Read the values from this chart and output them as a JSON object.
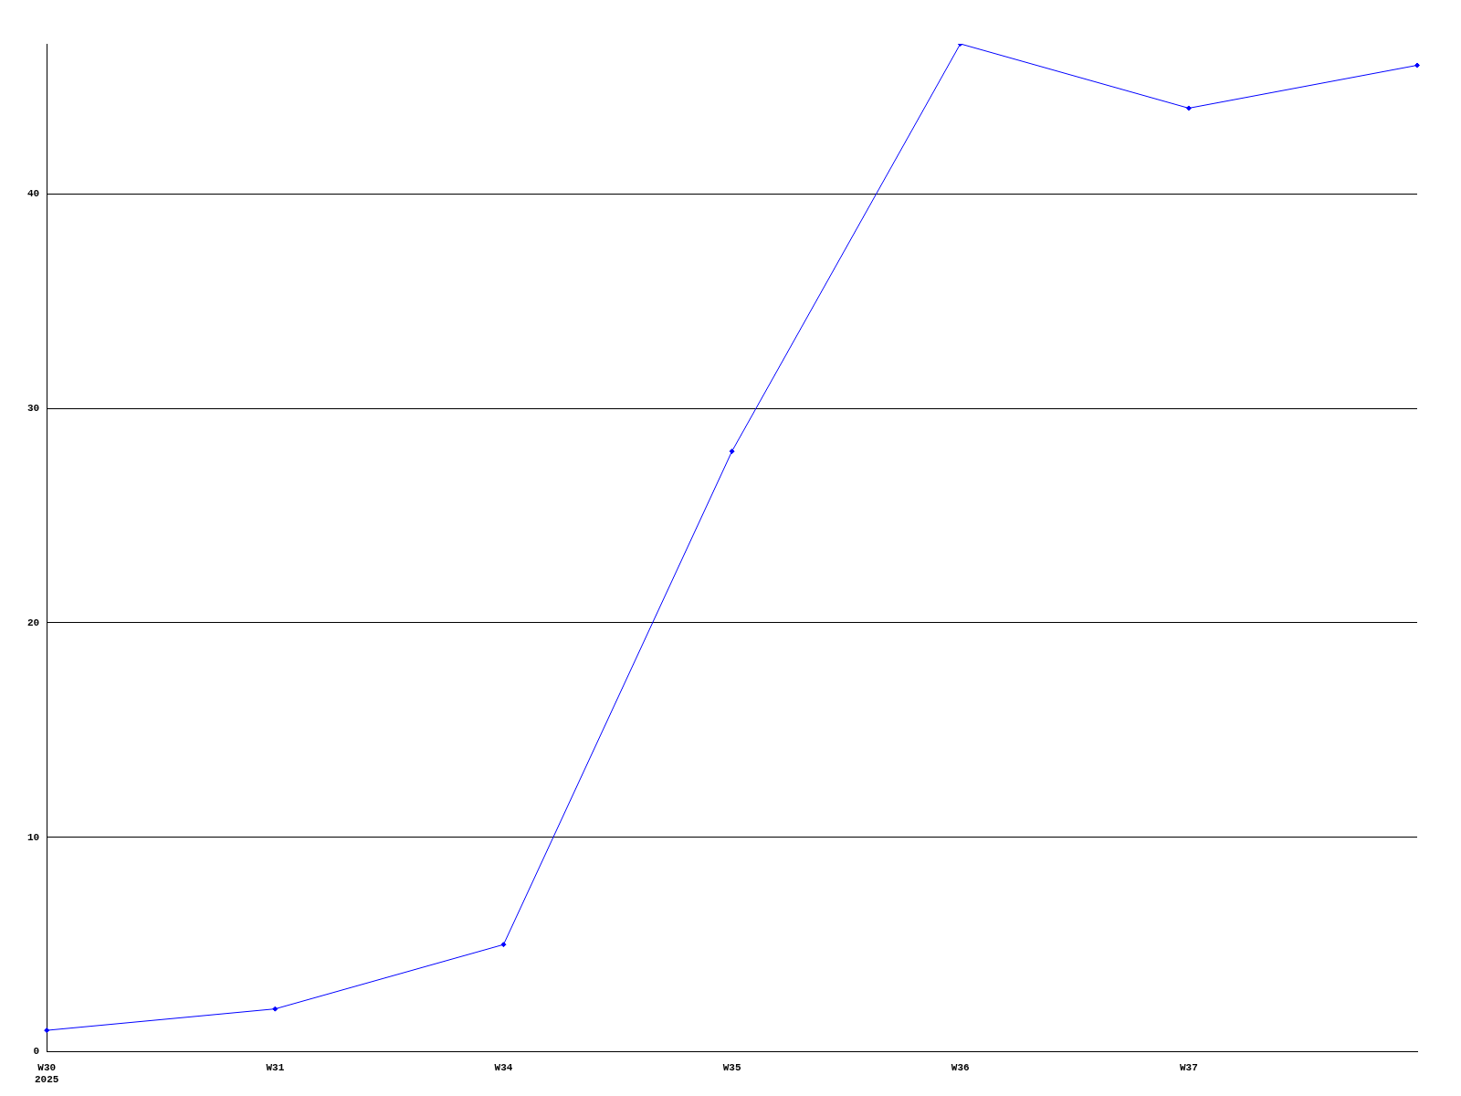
{
  "chart_data": {
    "type": "line",
    "categories": [
      "W30\n2025",
      "W31",
      "W34",
      "W35",
      "W36",
      "W37",
      null
    ],
    "series": [
      {
        "color": "#0000ff",
        "values": [
          1,
          2,
          5,
          28,
          47,
          44,
          46
        ]
      }
    ],
    "ylim": [
      0,
      47
    ],
    "yticks": [
      0,
      10,
      20,
      30,
      40
    ],
    "grid": "y",
    "legend": false,
    "marker": "diamond",
    "line_style": "solid"
  }
}
